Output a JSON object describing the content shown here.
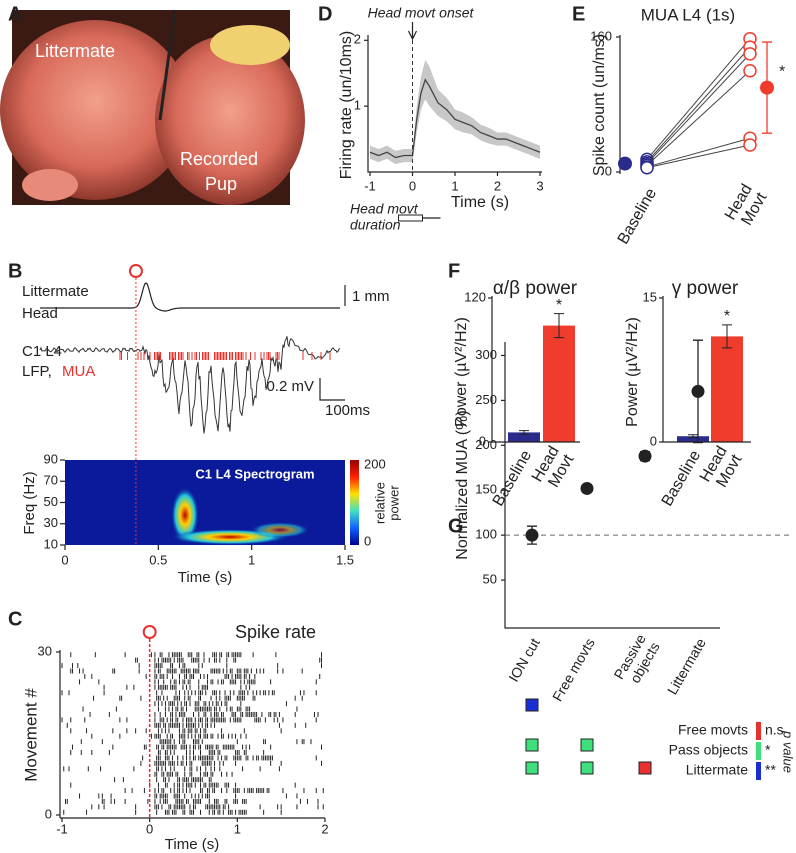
{
  "panel_labels": [
    "A",
    "B",
    "C",
    "D",
    "E",
    "F",
    "G"
  ],
  "photo": {
    "littermate": "Littermate",
    "recorded": [
      "Recorded",
      "Pup"
    ]
  },
  "traces": {
    "head": [
      "Littermate",
      "Head"
    ],
    "head_scale": "1 mm",
    "lfp": [
      "C1 L4",
      "LFP,"
    ],
    "mua": "MUA",
    "lfp_scale": "0.2 mV",
    "time_scale": "100ms"
  },
  "chart_data": [
    {
      "type": "spectrogram",
      "title": "C1 L4 Spectrogram",
      "xlabel": "Time (s)",
      "ylabel": "Freq (Hz)",
      "xlim": [
        0,
        1.5
      ],
      "xticks": [
        0,
        0.5,
        1,
        1.5
      ],
      "ylim": [
        10,
        90
      ],
      "yticks": [
        10,
        30,
        50,
        70,
        90
      ],
      "onset": 0.38,
      "colorbar_label": [
        "relative",
        "power"
      ],
      "colorbar_ticks": [
        0,
        200
      ]
    },
    {
      "type": "raster",
      "title": "Spike rate",
      "xlabel": "Time (s)",
      "ylabel": "Movement #",
      "xlim": [
        -1,
        2
      ],
      "xticks": [
        -1,
        0,
        1,
        2
      ],
      "ylim": [
        0,
        30
      ],
      "yticks": [
        0,
        30
      ],
      "onset": 0
    },
    {
      "type": "line",
      "annotation": "Head movt onset",
      "duration_label": [
        "Head movt",
        "duration"
      ],
      "xlabel": "Time (s)",
      "ylabel": "Firing rate (un/10ms)",
      "onset": 0,
      "x": [
        -1,
        -0.8,
        -0.6,
        -0.4,
        -0.2,
        0,
        0.1,
        0.2,
        0.3,
        0.4,
        0.6,
        0.8,
        1,
        1.2,
        1.4,
        1.6,
        1.8,
        2,
        2.2,
        2.4,
        2.6,
        2.8,
        3
      ],
      "values": [
        0.3,
        0.25,
        0.3,
        0.22,
        0.25,
        0.25,
        0.8,
        1.2,
        1.4,
        1.3,
        1.05,
        0.95,
        0.8,
        0.75,
        0.7,
        0.6,
        0.55,
        0.5,
        0.5,
        0.45,
        0.4,
        0.35,
        0.3
      ],
      "errors": [
        0.1,
        0.1,
        0.1,
        0.1,
        0.1,
        0.1,
        0.2,
        0.25,
        0.3,
        0.3,
        0.2,
        0.18,
        0.15,
        0.15,
        0.13,
        0.12,
        0.12,
        0.1,
        0.1,
        0.1,
        0.1,
        0.1,
        0.1
      ],
      "xlim": [
        -1,
        3
      ],
      "xticks": [
        -1,
        0,
        1,
        2,
        3
      ],
      "ylim": [
        0,
        2.05
      ],
      "yticks": [
        1,
        2
      ]
    },
    {
      "type": "paired",
      "title": "MUA L4 (1s)",
      "ylabel": "Spike count (un/ms)",
      "categories": [
        "Baseline",
        [
          "Head",
          "Movt"
        ]
      ],
      "colors": [
        "#2b2b8c",
        "#f03c2c"
      ],
      "series": [
        {
          "values": [
            15,
            158
          ]
        },
        {
          "values": [
            12,
            148
          ]
        },
        {
          "values": [
            10,
            140
          ]
        },
        {
          "values": [
            8,
            120
          ]
        },
        {
          "values": [
            6,
            40
          ]
        },
        {
          "values": [
            5,
            32
          ]
        }
      ],
      "mean": {
        "values": [
          10,
          100
        ],
        "errors": [
          4,
          54
        ]
      },
      "annotation": "*",
      "ylim": [
        0,
        160
      ],
      "yticks": [
        0,
        160
      ]
    },
    {
      "type": "bar",
      "title": "α/β power",
      "ylabel": "Power (µV²/Hz)",
      "categories": [
        "Baseline",
        [
          "Head",
          "Movt"
        ]
      ],
      "values": [
        8,
        97
      ],
      "errors": [
        1.5,
        10
      ],
      "colors": [
        "#2b2b8c",
        "#f03c2c"
      ],
      "annotation": "*",
      "ylim": [
        0,
        120
      ],
      "yticks": [
        0,
        120
      ]
    },
    {
      "type": "bar",
      "title": "γ power",
      "ylabel": "Power (µV²/Hz)",
      "categories": [
        "Baseline",
        [
          "Head",
          "Movt"
        ]
      ],
      "values": [
        0.6,
        11
      ],
      "errors": [
        0.15,
        1.2
      ],
      "colors": [
        "#2b2b8c",
        "#f03c2c"
      ],
      "annotation": "*",
      "ylim": [
        0,
        15
      ],
      "yticks": [
        0,
        15
      ]
    },
    {
      "type": "errorpoints",
      "ylabel": "Normalized MUA (%)",
      "categories": [
        "ION cut",
        "Free movts",
        [
          "Passive",
          "objects"
        ],
        "Littermate"
      ],
      "values": [
        100,
        152,
        188,
        260
      ],
      "errors": [
        10,
        4,
        5,
        57
      ],
      "reference": 100,
      "ylim": [
        0,
        315
      ],
      "yticks": [
        50,
        100,
        150,
        200,
        250,
        300
      ],
      "comparisons": [
        {
          "label": "Free movts",
          "levels": [
            2,
            null,
            null,
            null
          ]
        },
        {
          "label": "Pass objects",
          "levels": [
            1,
            1,
            null,
            null
          ]
        },
        {
          "label": "Littermate",
          "levels": [
            1,
            1,
            0,
            null
          ]
        }
      ],
      "significance": [
        {
          "label": "n.s",
          "color": "#e8312c"
        },
        {
          "label": "*",
          "color": "#3de07a"
        },
        {
          "label": "**",
          "color": "#1a2ed6"
        }
      ],
      "significance_title": "p value"
    }
  ]
}
